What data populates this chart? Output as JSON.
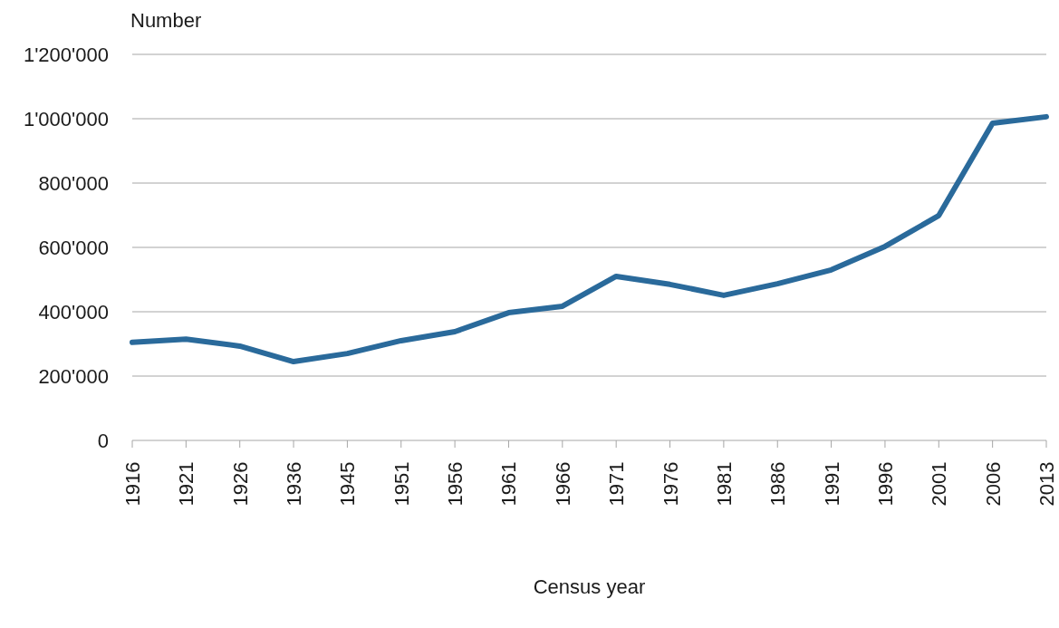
{
  "chart_data": {
    "type": "line",
    "ylabel": "Number",
    "xlabel": "Census year",
    "categories": [
      "1916",
      "1921",
      "1926",
      "1936",
      "1945",
      "1951",
      "1956",
      "1961",
      "1966",
      "1971",
      "1976",
      "1981",
      "1986",
      "1991",
      "1996",
      "2001",
      "2006",
      "2013"
    ],
    "series": [
      {
        "color": "#2a6a9b",
        "values": [
          305000,
          315000,
          293000,
          245000,
          270000,
          310000,
          338000,
          397000,
          417000,
          510000,
          485000,
          451000,
          487000,
          530000,
          603000,
          699000,
          986000,
          1006000
        ]
      }
    ],
    "ylim": [
      0,
      1200000
    ],
    "yticks": [
      {
        "value": 0,
        "label": "0"
      },
      {
        "value": 200000,
        "label": "200'000"
      },
      {
        "value": 400000,
        "label": "400'000"
      },
      {
        "value": 600000,
        "label": "600'000"
      },
      {
        "value": 800000,
        "label": "800'000"
      },
      {
        "value": 1000000,
        "label": "1'000'000"
      },
      {
        "value": 1200000,
        "label": "1'200'000"
      }
    ],
    "grid": "y",
    "marker": "none",
    "line_style": "solid"
  }
}
